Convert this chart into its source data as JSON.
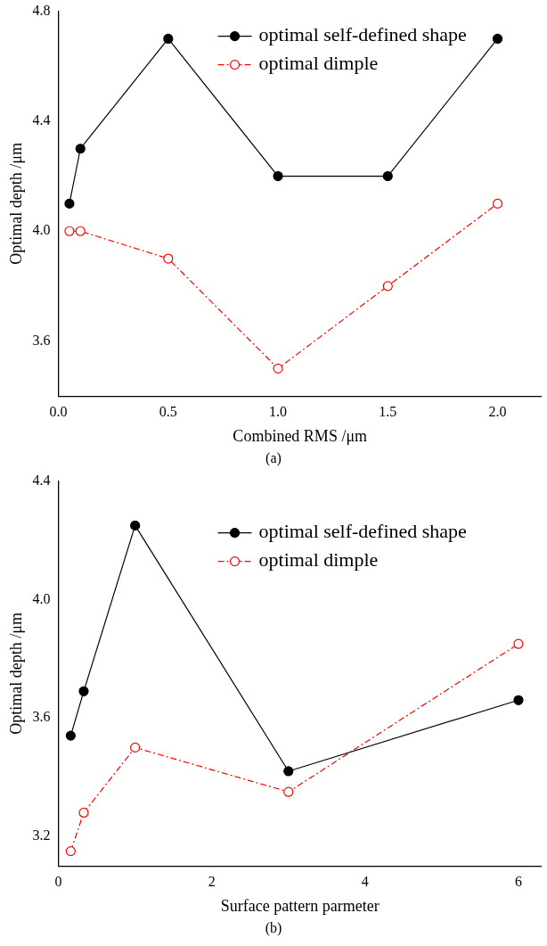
{
  "chart_data": [
    {
      "type": "line",
      "xlabel": "Combined RMS /μm",
      "ylabel": "Optimal depth /μm",
      "annotations": [
        "(a)"
      ],
      "x": [
        0.05,
        0.1,
        0.5,
        1.0,
        1.5,
        2.0
      ],
      "series": [
        {
          "name": "optimal self-defined shape",
          "color": "#000000",
          "values": [
            4.1,
            4.3,
            4.7,
            4.2,
            4.2,
            4.7
          ],
          "marker": "circle",
          "line_style": "solid"
        },
        {
          "name": "optimal dimple",
          "color": "#ff0000",
          "values": [
            4.0,
            4.0,
            3.9,
            3.5,
            3.8,
            4.1
          ],
          "marker": "circle",
          "line_style": "dashed"
        }
      ],
      "xlim": [
        0,
        2.2
      ],
      "xticks": [
        {
          "value": 0,
          "label": "0.0"
        },
        0.5,
        {
          "value": 1,
          "label": "1.0"
        },
        1.5,
        {
          "value": 2,
          "label": "2.0"
        }
      ],
      "ylim": [
        3.4,
        4.8
      ],
      "yticks": [
        3.6,
        {
          "value": 4,
          "label": "4.0"
        },
        4.4,
        4.8
      ],
      "grid": false,
      "legend": "top right"
    },
    {
      "type": "line",
      "xlabel": "Surface pattern parmeter",
      "ylabel": "Optimal depth /μm",
      "annotations": [
        "(b)"
      ],
      "x": [
        0.16,
        0.33,
        1,
        3,
        6
      ],
      "series": [
        {
          "name": "optimal self-defined shape",
          "color": "#000000",
          "values": [
            3.54,
            3.69,
            4.25,
            3.42,
            3.66
          ],
          "marker": "circle",
          "line_style": "solid"
        },
        {
          "name": "optimal dimple",
          "color": "#ff0000",
          "values": [
            3.15,
            3.28,
            3.5,
            3.35,
            3.85
          ],
          "marker": "circle",
          "line_style": "dashed"
        }
      ],
      "xlim": [
        0,
        6.3
      ],
      "xticks": [
        0,
        2,
        4,
        6
      ],
      "ylim": [
        3.1,
        4.4
      ],
      "yticks": [
        3.2,
        3.6,
        {
          "value": 4,
          "label": "4.0"
        },
        4.4
      ],
      "grid": false,
      "legend": "top right"
    }
  ]
}
